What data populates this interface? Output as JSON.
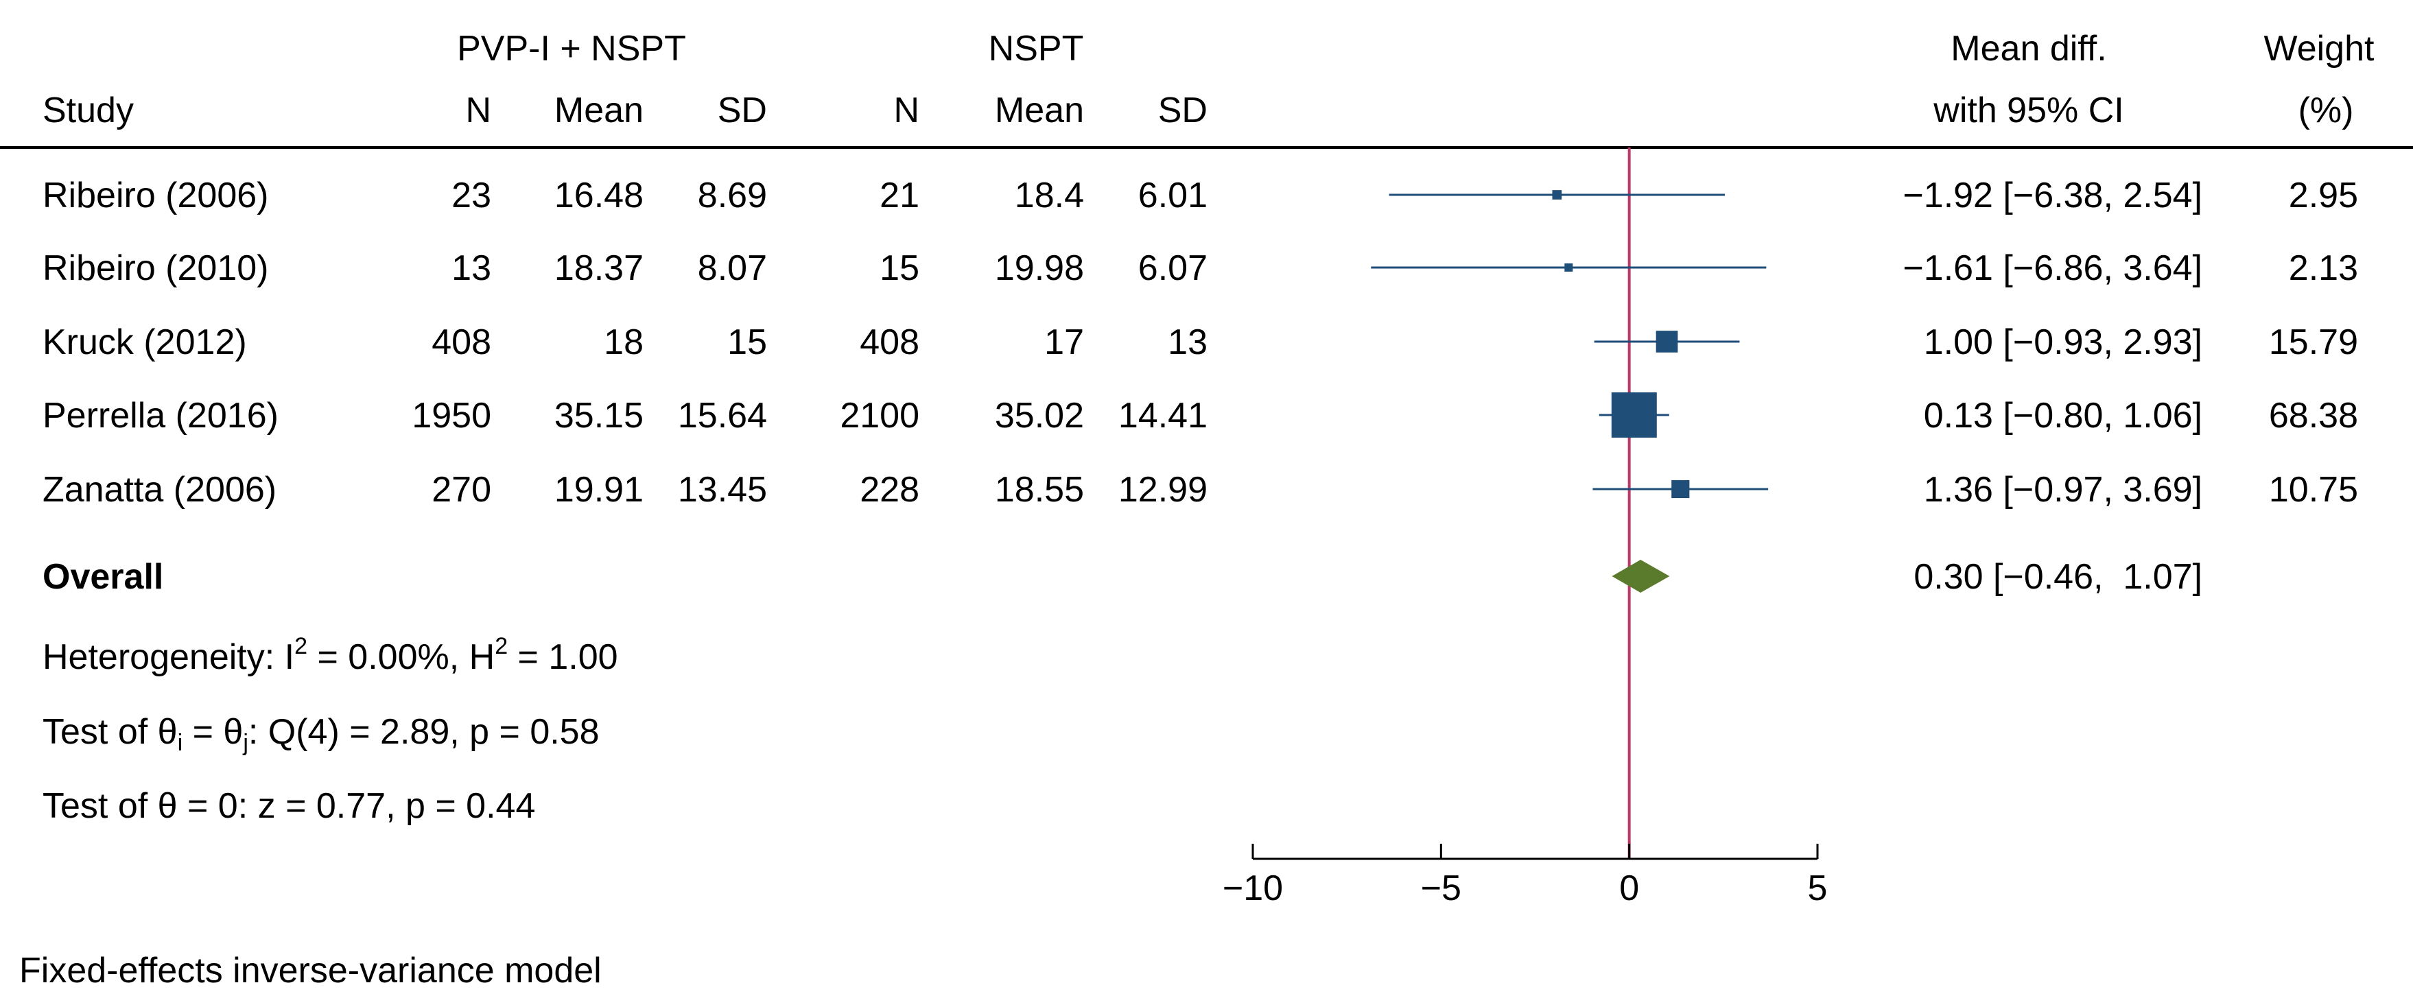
{
  "header": {
    "group1": "PVP-I + NSPT",
    "group2": "NSPT",
    "study": "Study",
    "n1": "N",
    "mean1": "Mean",
    "sd1": "SD",
    "n2": "N",
    "mean2": "Mean",
    "sd2": "SD",
    "effect_line1": "Mean diff.",
    "effect_line2": "with 95% CI",
    "weight_line1": "Weight",
    "weight_line2": "(%)"
  },
  "chart_data": {
    "type": "forest",
    "title": "",
    "xlabel": "",
    "x_ticks": [
      "−10",
      "−5",
      "0",
      "5"
    ],
    "x_tick_values": [
      -10,
      -5,
      0,
      5
    ],
    "xlim": [
      -10,
      5
    ],
    "null_line": 0,
    "rows": [
      {
        "study": "Ribeiro (2006)",
        "n1": "23",
        "mean1": "16.48",
        "sd1": "8.69",
        "n2": "21",
        "mean2": "18.4",
        "sd2": "6.01",
        "md": -1.92,
        "lo": -6.38,
        "hi": 2.54,
        "ci_text": "−1.92 [−6.38,  2.54]",
        "weight": 2.95,
        "weight_text": "2.95"
      },
      {
        "study": "Ribeiro (2010)",
        "n1": "13",
        "mean1": "18.37",
        "sd1": "8.07",
        "n2": "15",
        "mean2": "19.98",
        "sd2": "6.07",
        "md": -1.61,
        "lo": -6.86,
        "hi": 3.64,
        "ci_text": "−1.61 [−6.86,  3.64]",
        "weight": 2.13,
        "weight_text": "2.13"
      },
      {
        "study": "Kruck (2012)",
        "n1": "408",
        "mean1": "18",
        "sd1": "15",
        "n2": "408",
        "mean2": "17",
        "sd2": "13",
        "md": 1.0,
        "lo": -0.93,
        "hi": 2.93,
        "ci_text": "1.00 [−0.93,  2.93]",
        "weight": 15.79,
        "weight_text": "15.79"
      },
      {
        "study": "Perrella (2016)",
        "n1": "1950",
        "mean1": "35.15",
        "sd1": "15.64",
        "n2": "2100",
        "mean2": "35.02",
        "sd2": "14.41",
        "md": 0.13,
        "lo": -0.8,
        "hi": 1.06,
        "ci_text": "0.13 [−0.80,  1.06]",
        "weight": 68.38,
        "weight_text": "68.38"
      },
      {
        "study": "Zanatta (2006)",
        "n1": "270",
        "mean1": "19.91",
        "sd1": "13.45",
        "n2": "228",
        "mean2": "18.55",
        "sd2": "12.99",
        "md": 1.36,
        "lo": -0.97,
        "hi": 3.69,
        "ci_text": "1.36 [−0.97,  3.69]",
        "weight": 10.75,
        "weight_text": "10.75"
      }
    ],
    "overall": {
      "label": "Overall",
      "md": 0.3,
      "lo": -0.46,
      "hi": 1.07,
      "ci_text": "0.30 [−0.46,  1.07]"
    },
    "stats": {
      "heterogeneity_prefix": "Heterogeneity: I",
      "heterogeneity_sup1": "2",
      "heterogeneity_mid": " = 0.00%, H",
      "heterogeneity_sup2": "2",
      "heterogeneity_suffix": " = 1.00",
      "test_prefix": "Test of θ",
      "test_sub1": "i",
      "test_mid": " = θ",
      "test_sub2": "j",
      "test_suffix": ": Q(4) = 2.89, p = 0.58",
      "test_zero": "Test of θ = 0: z = 0.77, p = 0.44"
    },
    "model_note": "Fixed-effects inverse-variance model",
    "colors": {
      "marker": "#1f4e79",
      "ci_line": "#1f4e79",
      "null_line": "#c0386a",
      "diamond": "#5a7a2c",
      "axis": "#000000"
    }
  }
}
